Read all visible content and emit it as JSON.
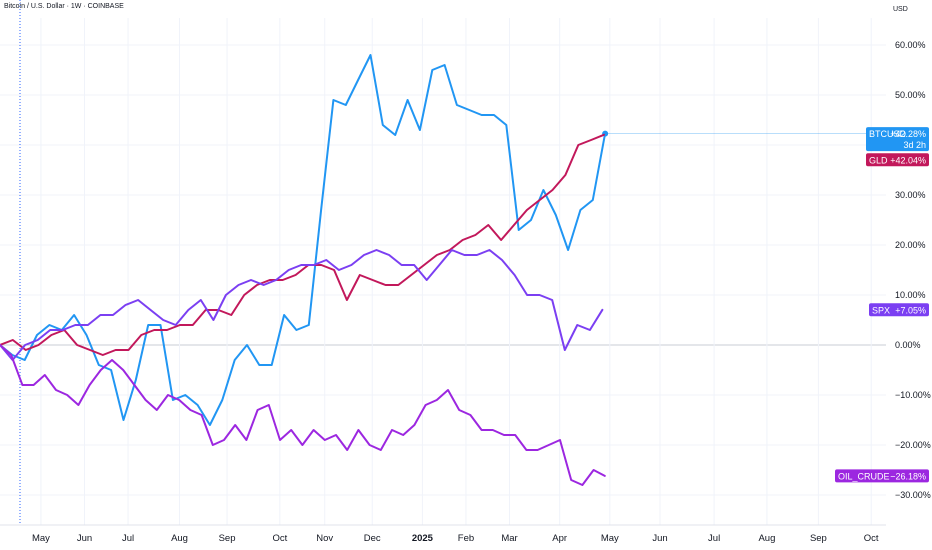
{
  "header": {
    "title": "Bitcoin / U.S. Dollar · 1W · COINBASE",
    "currency": "USD"
  },
  "chart_data": {
    "type": "line",
    "y_unit": "%",
    "ylim": [
      -36,
      70
    ],
    "y_ticks": [
      60,
      50,
      40,
      30,
      20,
      10,
      0,
      -10,
      -20,
      -30
    ],
    "y_tick_labels": [
      "60.00%",
      "50.00%",
      "40.00%",
      "30.00%",
      "20.00%",
      "10.00%",
      "0.00%",
      "−10.00%",
      "−20.00%",
      "−30.00%"
    ],
    "x_axis": {
      "labels": [
        "May",
        "Jun",
        "Jul",
        "Aug",
        "Sep",
        "Oct",
        "Nov",
        "Dec",
        "2025",
        "Feb",
        "Mar",
        "Apr",
        "May",
        "Jun",
        "Jul",
        "Aug",
        "Sep",
        "Oct"
      ],
      "label_positions_week": [
        3.1,
        6.4,
        9.7,
        13.6,
        17.2,
        21.2,
        24.6,
        28.2,
        32,
        35.3,
        38.6,
        42.4,
        46.2,
        50,
        54.1,
        58.1,
        62,
        66
      ],
      "bold_labels": [
        "2025"
      ],
      "range_weeks": [
        0,
        68
      ]
    },
    "grid": true,
    "zero_line": 0,
    "series": [
      {
        "name": "BTCUSD",
        "color": "#2196f3",
        "last_label": "+42.28%",
        "sub_label": "3d 2h",
        "end_marker": true,
        "values": [
          0,
          -2,
          -3,
          2,
          4,
          3,
          6,
          2,
          -4,
          -5,
          -15,
          -7,
          4,
          4,
          -11,
          -10,
          -12,
          -16,
          -11,
          -3,
          0,
          -4,
          -4,
          6,
          3,
          4,
          27,
          49,
          48,
          53,
          58,
          44,
          42,
          49,
          43,
          55,
          56,
          48,
          47,
          46,
          46,
          44,
          23,
          25,
          31,
          26,
          19,
          27,
          29,
          42.28
        ]
      },
      {
        "name": "GLD",
        "color": "#c2185b",
        "last_label": "+42.04%",
        "values": [
          0,
          1,
          -1,
          0,
          2,
          3,
          0,
          -1,
          -2,
          -1,
          -1,
          2,
          3,
          3,
          4,
          4,
          7,
          7,
          6,
          10,
          12,
          13,
          13,
          14,
          16,
          16,
          15,
          9,
          14,
          13,
          12,
          12,
          14,
          16,
          18,
          19,
          21,
          22,
          24,
          21,
          24,
          27,
          29,
          31,
          34,
          40,
          41,
          42.04
        ]
      },
      {
        "name": "SPX",
        "color": "#7b3ff2",
        "last_label": "+7.05%",
        "values": [
          0,
          -3,
          0,
          1,
          3,
          3,
          4,
          4,
          6,
          6,
          8,
          9,
          7,
          5,
          4,
          7,
          9,
          5,
          10,
          12,
          13,
          12,
          13,
          15,
          16,
          16,
          17,
          15,
          16,
          18,
          19,
          18,
          16,
          16,
          13,
          16,
          19,
          18,
          18,
          19,
          17,
          14,
          10,
          10,
          9,
          -1,
          4,
          3,
          7.05
        ]
      },
      {
        "name": "OIL_CRUDE",
        "color": "#9c27e0",
        "last_label": "−26.18%",
        "values": [
          0,
          -2,
          -8,
          -8,
          -6,
          -9,
          -10,
          -12,
          -8,
          -5,
          -3,
          -5,
          -8,
          -11,
          -13,
          -10,
          -11,
          -13,
          -14,
          -20,
          -19,
          -16,
          -19,
          -13,
          -12,
          -19,
          -17,
          -20,
          -17,
          -19,
          -18,
          -21,
          -17,
          -20,
          -21,
          -17,
          -18,
          -16,
          -12,
          -11,
          -9,
          -13,
          -14,
          -17,
          -17,
          -18,
          -18,
          -21,
          -21,
          -20,
          -19,
          -27,
          -28,
          -25,
          -26.18
        ]
      }
    ]
  },
  "colors": {
    "grid": "#f0f3fa",
    "axis_text": "#131722",
    "zero_line": "#c9ccd4",
    "cursor_line": "#2962ff"
  }
}
